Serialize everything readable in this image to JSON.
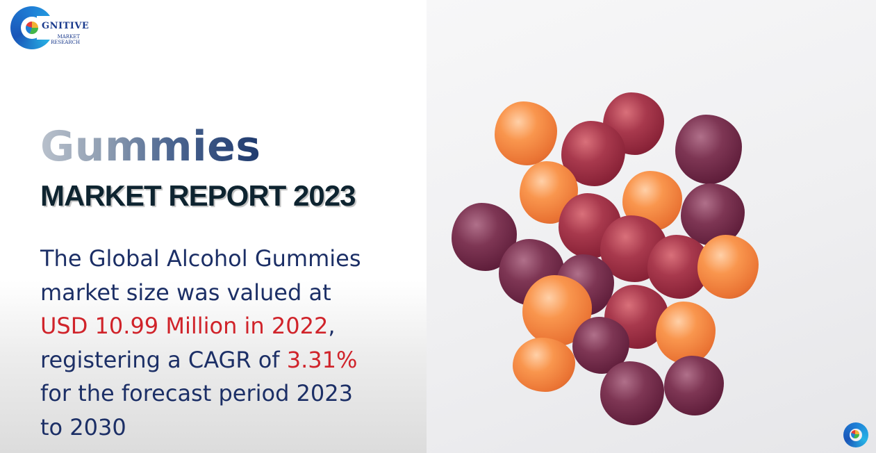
{
  "logo": {
    "word": "GNITIVE",
    "sub_line1": "MARKET",
    "sub_line2": "RESEARCH"
  },
  "heading": {
    "title": "Gummies",
    "subtitle": "MARKET REPORT 2023"
  },
  "description": {
    "line1": "The Global Alcohol Gummies",
    "line2": "market size was valued at",
    "line3_highlight": "USD 10.99 Million in 2022",
    "line3_suffix": ",",
    "line4_prefix": "registering a CAGR of ",
    "line4_highlight": "3.31%",
    "line5": "for the forecast period 2023",
    "line6": "to 2030"
  },
  "colors": {
    "accent_red": "#d0232a",
    "text_navy": "#1c2f66",
    "brand_blue": "#1f7fd6"
  },
  "image": {
    "subject": "gummies-photo",
    "watermark": "cognitive-logo-watermark"
  }
}
